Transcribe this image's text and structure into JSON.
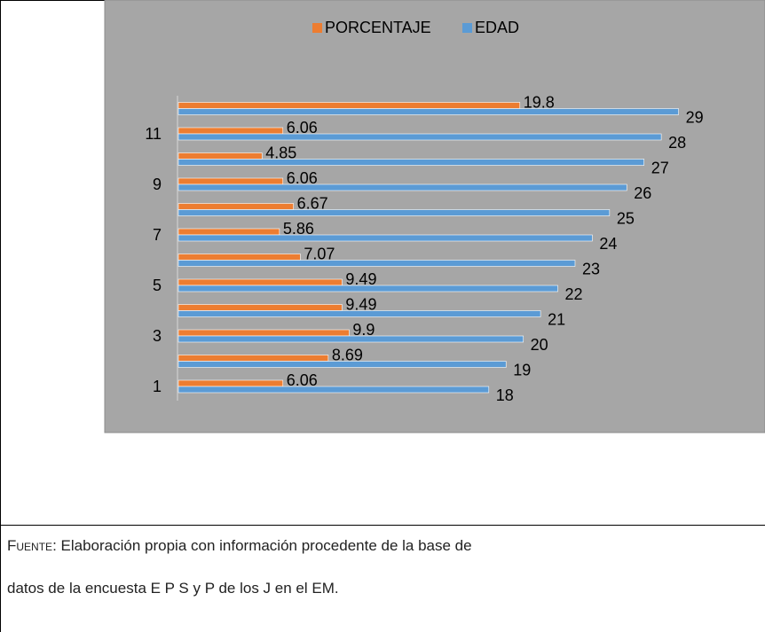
{
  "chart_data": {
    "type": "bar",
    "orientation": "horizontal",
    "categories": [
      "1",
      null,
      "3",
      null,
      "5",
      null,
      "7",
      null,
      "9",
      null,
      "11",
      null
    ],
    "series": [
      {
        "name": "PORCENTAJE",
        "color": "#ed7d31",
        "values": [
          6.06,
          8.69,
          9.9,
          9.49,
          9.49,
          7.07,
          5.86,
          6.67,
          6.06,
          4.85,
          6.06,
          19.8
        ]
      },
      {
        "name": "EDAD",
        "color": "#5b9bd5",
        "values": [
          18,
          19,
          20,
          21,
          22,
          23,
          24,
          25,
          26,
          27,
          28,
          29
        ]
      }
    ],
    "xlim": [
      0,
      30
    ],
    "legend": "top",
    "background": "#a6a6a6"
  },
  "source": {
    "label": "Fuente",
    "text": ": Elaboración propia con información procedente de la base de",
    "text2": "datos  de la encuesta  E P S y P de los J en el EM."
  }
}
